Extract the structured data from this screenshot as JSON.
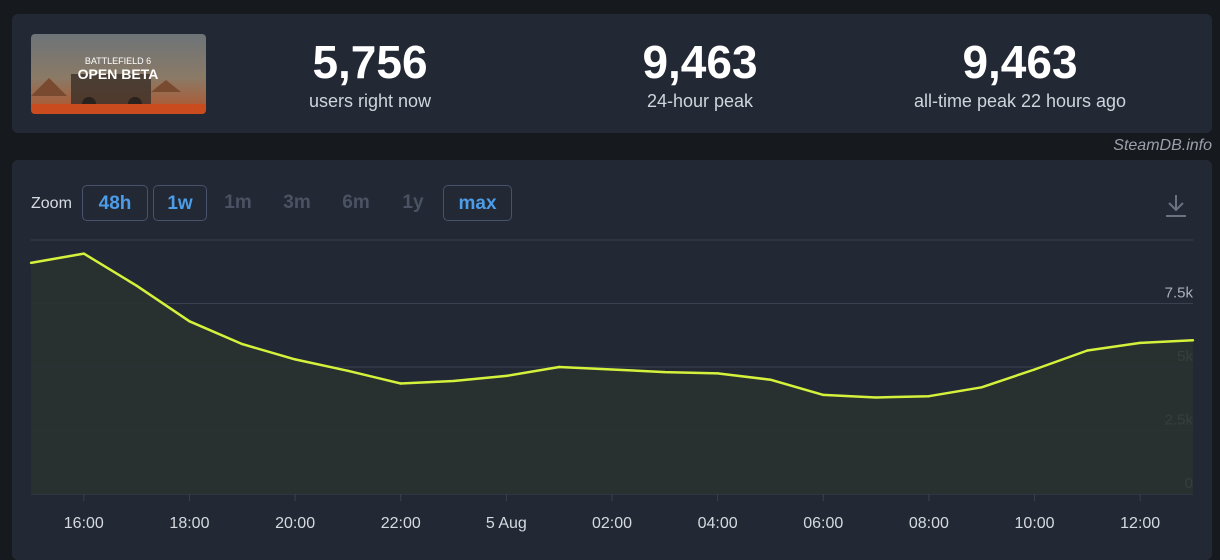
{
  "header": {
    "game_art_text_1": "BATTLEFIELD 6",
    "game_art_text_2": "OPEN BETA",
    "stats": [
      {
        "value": "5,756",
        "label": "users right now"
      },
      {
        "value": "9,463",
        "label": "24-hour peak"
      },
      {
        "value": "9,463",
        "label": "all-time peak 22 hours ago"
      }
    ]
  },
  "credit": "SteamDB.info",
  "zoom": {
    "label": "Zoom",
    "options": [
      {
        "label": "48h",
        "active": true
      },
      {
        "label": "1w",
        "active": true
      },
      {
        "label": "1m",
        "active": false
      },
      {
        "label": "3m",
        "active": false
      },
      {
        "label": "6m",
        "active": false
      },
      {
        "label": "1y",
        "active": false
      },
      {
        "label": "max",
        "active": true
      }
    ]
  },
  "colors": {
    "line": "#d4f23c",
    "grid": "#3a4150",
    "panel": "#222834",
    "accent": "#4d9ce8"
  },
  "chart_data": {
    "type": "area",
    "x_unit": "hour (4 Aug 15:00 to 5 Aug 13:00)",
    "x_ticks": [
      "16:00",
      "18:00",
      "20:00",
      "22:00",
      "5 Aug",
      "02:00",
      "04:00",
      "06:00",
      "08:00",
      "10:00",
      "12:00"
    ],
    "y_ticks": [
      "0",
      "2.5k",
      "5k",
      "7.5k"
    ],
    "ylim": [
      0,
      10000
    ],
    "grid": true,
    "points": [
      {
        "t": "4 Aug 15:00",
        "v": 9100
      },
      {
        "t": "4 Aug 16:00",
        "v": 9463
      },
      {
        "t": "4 Aug 17:00",
        "v": 8200
      },
      {
        "t": "4 Aug 18:00",
        "v": 6800
      },
      {
        "t": "4 Aug 19:00",
        "v": 5900
      },
      {
        "t": "4 Aug 20:00",
        "v": 5300
      },
      {
        "t": "4 Aug 21:00",
        "v": 4850
      },
      {
        "t": "4 Aug 22:00",
        "v": 4350
      },
      {
        "t": "4 Aug 23:00",
        "v": 4450
      },
      {
        "t": "5 Aug 00:00",
        "v": 4650
      },
      {
        "t": "5 Aug 01:00",
        "v": 5000
      },
      {
        "t": "5 Aug 02:00",
        "v": 4900
      },
      {
        "t": "5 Aug 03:00",
        "v": 4800
      },
      {
        "t": "5 Aug 04:00",
        "v": 4750
      },
      {
        "t": "5 Aug 05:00",
        "v": 4500
      },
      {
        "t": "5 Aug 06:00",
        "v": 3900
      },
      {
        "t": "5 Aug 07:00",
        "v": 3800
      },
      {
        "t": "5 Aug 08:00",
        "v": 3850
      },
      {
        "t": "5 Aug 09:00",
        "v": 4200
      },
      {
        "t": "5 Aug 10:00",
        "v": 4900
      },
      {
        "t": "5 Aug 11:00",
        "v": 5650
      },
      {
        "t": "5 Aug 12:00",
        "v": 5950
      },
      {
        "t": "5 Aug 13:00",
        "v": 6050
      }
    ]
  }
}
